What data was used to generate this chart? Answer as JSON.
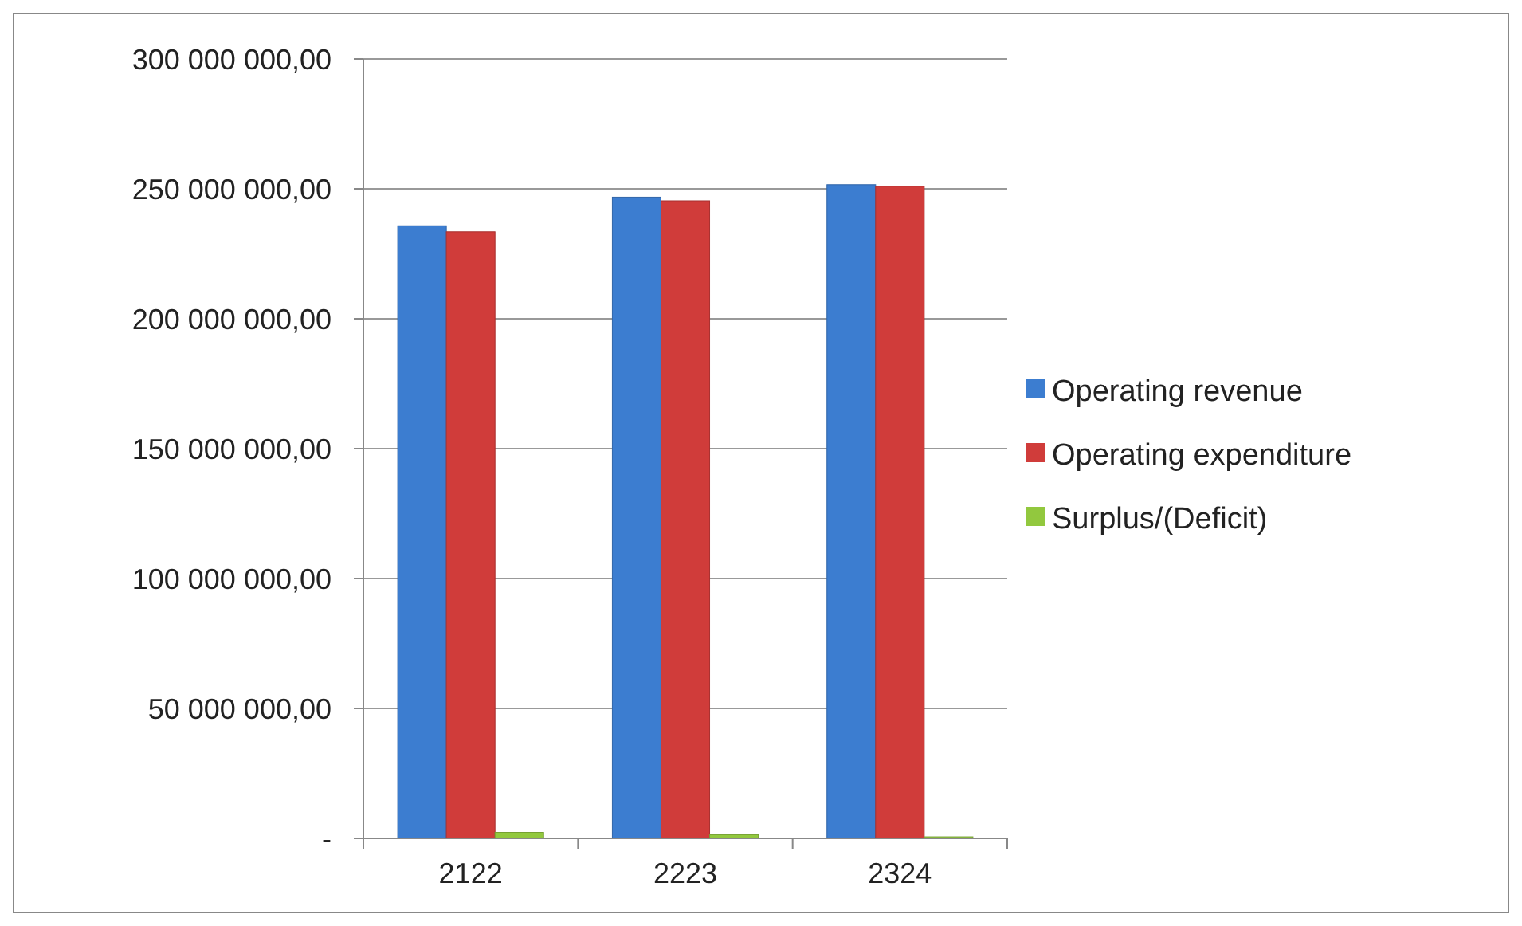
{
  "chart_data": {
    "type": "bar",
    "categories": [
      "2122",
      "2223",
      "2324"
    ],
    "series": [
      {
        "name": "Operating revenue",
        "color": "#3c7dd0",
        "values": [
          235800000,
          246800000,
          251600000
        ]
      },
      {
        "name": "Operating expenditure",
        "color": "#d03c3a",
        "values": [
          233500000,
          245400000,
          251000000
        ]
      },
      {
        "name": "Surplus/(Deficit)",
        "color": "#92c83e",
        "values": [
          2300000,
          1400000,
          600000
        ]
      }
    ],
    "ylim": [
      0,
      300000000
    ],
    "yticks": [
      {
        "value": 0,
        "label": "-"
      },
      {
        "value": 50000000,
        "label": "50 000 000,00"
      },
      {
        "value": 100000000,
        "label": "100 000 000,00"
      },
      {
        "value": 150000000,
        "label": "150 000 000,00"
      },
      {
        "value": 200000000,
        "label": "200 000 000,00"
      },
      {
        "value": 250000000,
        "label": "250 000 000,00"
      },
      {
        "value": 300000000,
        "label": "300 000 000,00"
      }
    ],
    "grid": "y",
    "legend": "right"
  }
}
